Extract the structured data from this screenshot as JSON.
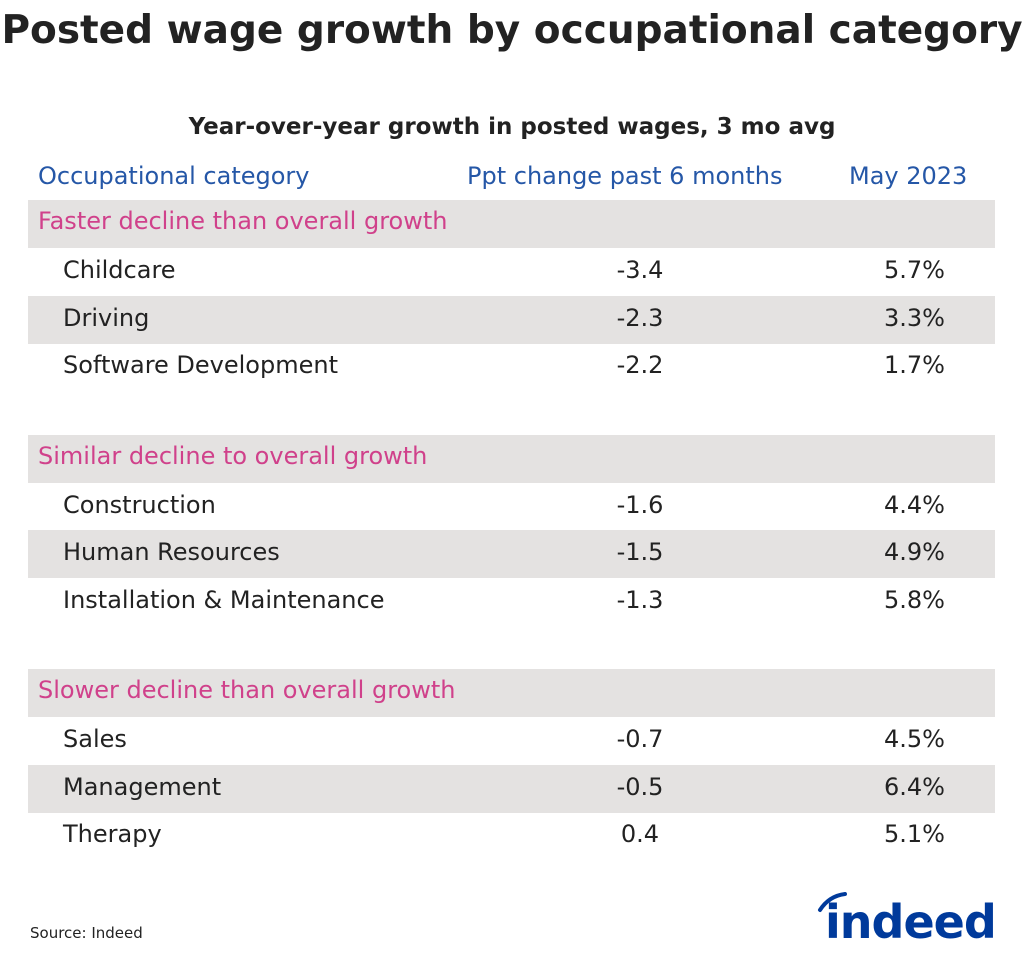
{
  "chart_data": {
    "type": "table",
    "title": "Posted wage growth by occupational category",
    "subtitle": "Year-over-year growth in posted wages, 3 mo avg",
    "columns": [
      "Occupational category",
      "Ppt change past 6 months",
      "May 2023"
    ],
    "groups": [
      {
        "label": "Faster decline than overall growth",
        "rows": [
          {
            "category": "Childcare",
            "ppt_change": "-3.4",
            "may_2023": "5.7%"
          },
          {
            "category": "Driving",
            "ppt_change": "-2.3",
            "may_2023": "3.3%"
          },
          {
            "category": "Software Development",
            "ppt_change": "-2.2",
            "may_2023": "1.7%"
          }
        ]
      },
      {
        "label": "Similar decline to overall growth",
        "rows": [
          {
            "category": "Construction",
            "ppt_change": "-1.6",
            "may_2023": "4.4%"
          },
          {
            "category": "Human Resources",
            "ppt_change": "-1.5",
            "may_2023": "4.9%"
          },
          {
            "category": "Installation & Maintenance",
            "ppt_change": "-1.3",
            "may_2023": "5.8%"
          }
        ]
      },
      {
        "label": "Slower decline than overall growth",
        "rows": [
          {
            "category": "Sales",
            "ppt_change": "-0.7",
            "may_2023": "4.5%"
          },
          {
            "category": "Management",
            "ppt_change": "-0.5",
            "may_2023": "6.4%"
          },
          {
            "category": "Therapy",
            "ppt_change": "0.4",
            "may_2023": "5.1%"
          }
        ]
      }
    ],
    "source": "Source: Indeed",
    "colors": {
      "header": "#2557a7",
      "group_label": "#d0418b",
      "stripe": "#e4e2e1",
      "logo": "#003a9b"
    }
  },
  "logo_text": "indeed"
}
